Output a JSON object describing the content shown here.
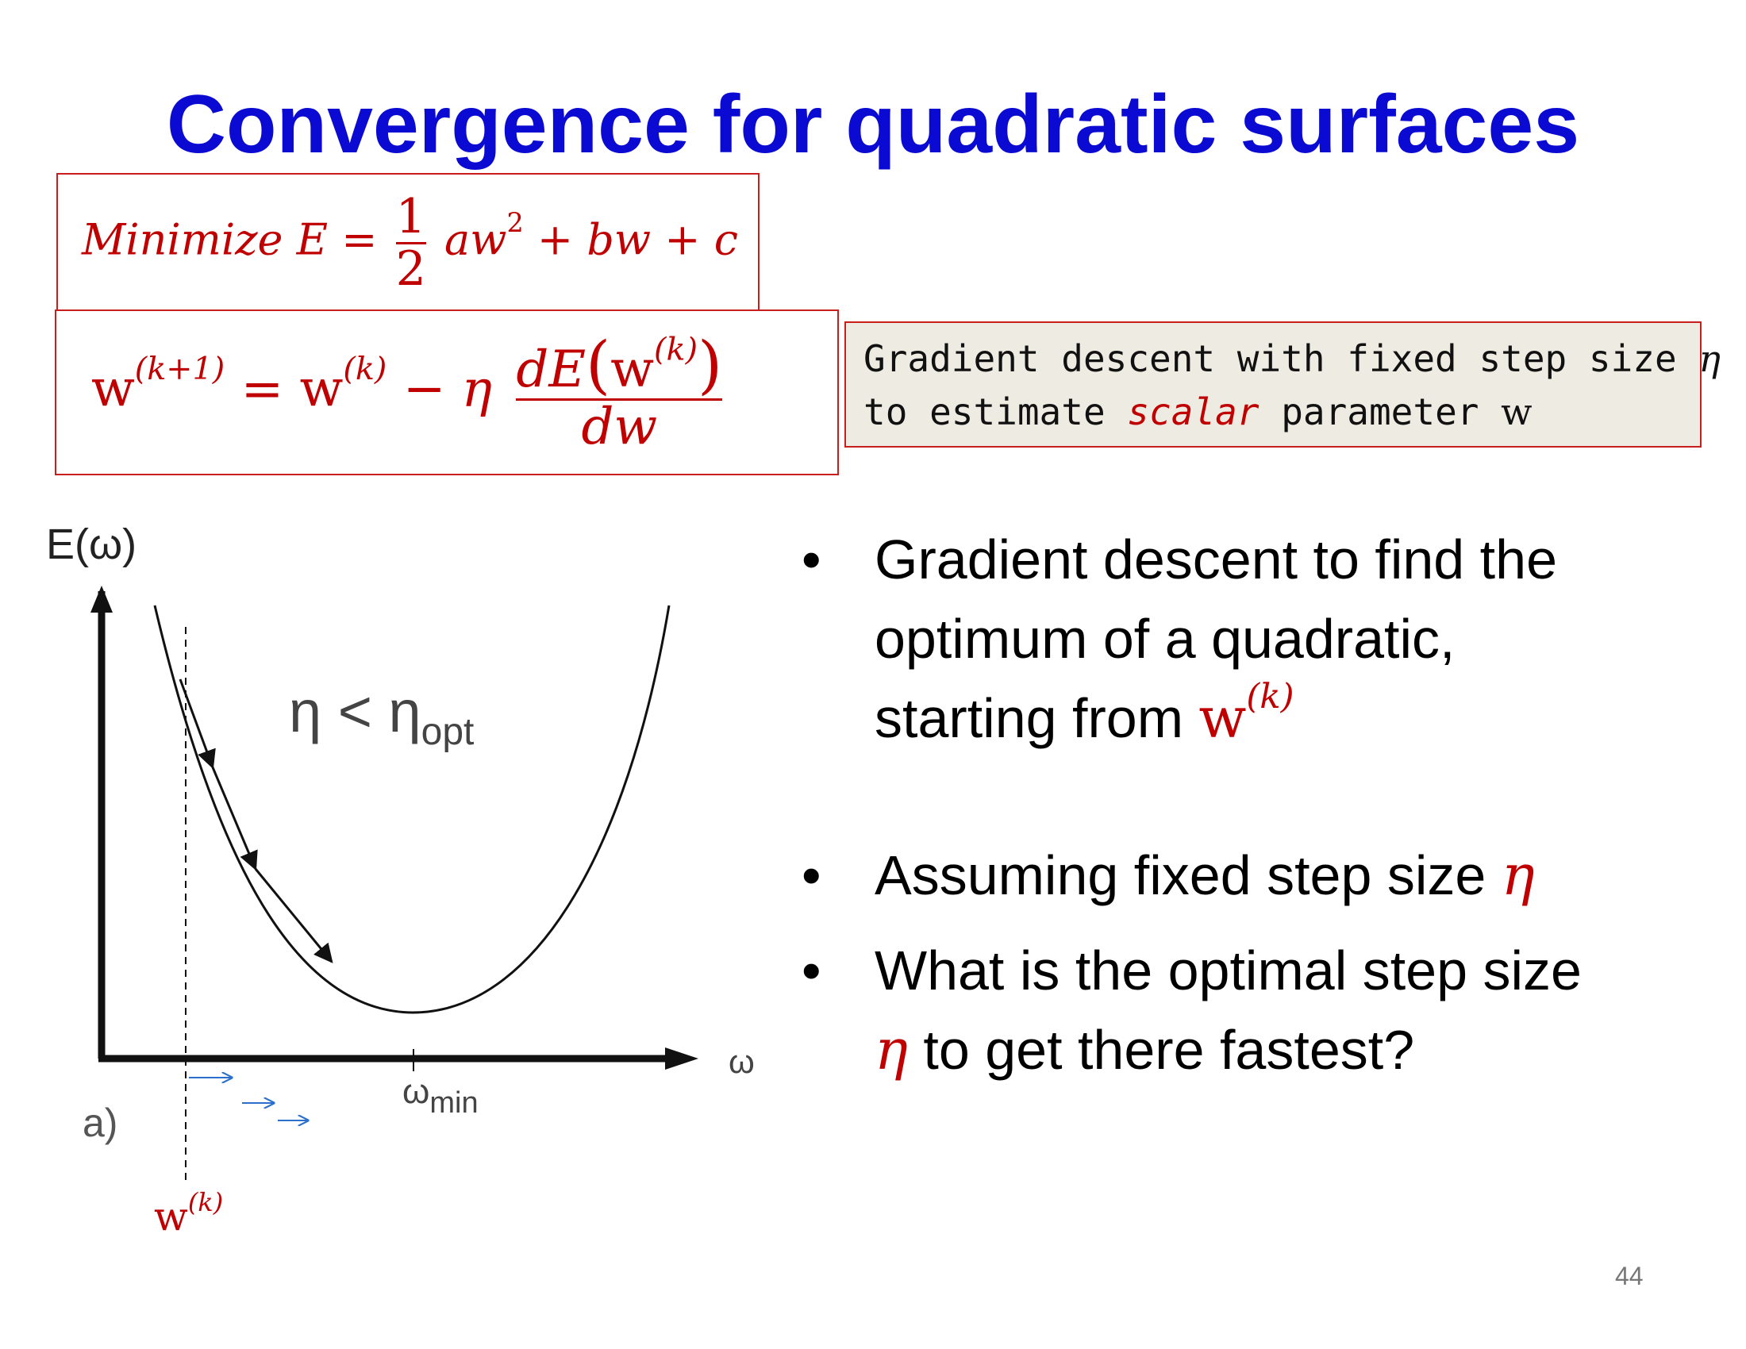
{
  "slide": {
    "title": "Convergence for quadratic surfaces",
    "page_number": "44"
  },
  "equations": {
    "objective": {
      "prefix": "Minimize E =",
      "frac_num": "1",
      "frac_den": "2",
      "term_a": "aw",
      "exp": "2",
      "rest": "+ bw + c"
    },
    "update": {
      "lhs": "w",
      "lhs_sup": "(k+1)",
      "eq_rhs_w": "= w",
      "rhs_sup": "(k)",
      "minus_eta": "− η",
      "num_d": "dE",
      "num_open": "(",
      "num_w": "w",
      "num_sup": "(k)",
      "num_close": ")",
      "den": "dw"
    }
  },
  "note": {
    "line1_text": "Gradient descent with fixed step size ",
    "line1_symbol": "η",
    "line2_pre": "to estimate ",
    "line2_emph": "scalar",
    "line2_post": " parameter ",
    "line2_symbol": "w"
  },
  "bullets": [
    {
      "marker": "•",
      "line1": "Gradient descent to find the",
      "line2": "optimum of a quadratic,",
      "line3": "starting from ",
      "symbol": "w",
      "sup": "(k)"
    },
    {
      "marker": "•",
      "text": "Assuming fixed step size ",
      "symbol": "η"
    },
    {
      "marker": "•",
      "line1": "What is the optimal step size",
      "symbol": "η",
      "line2": " to get there fastest?"
    }
  ],
  "diagram": {
    "y_axis_label": "E(ω)",
    "x_axis_label": "ω",
    "condition": "η < η",
    "condition_sub": "opt",
    "min_label": "ω",
    "min_sub": "min",
    "panel_label": "a)",
    "start_label": "w",
    "start_sup": "(k)",
    "colors": {
      "curve": "#111111",
      "blue_arrows": "#2a6fc9",
      "red_label": "#c00000"
    }
  }
}
